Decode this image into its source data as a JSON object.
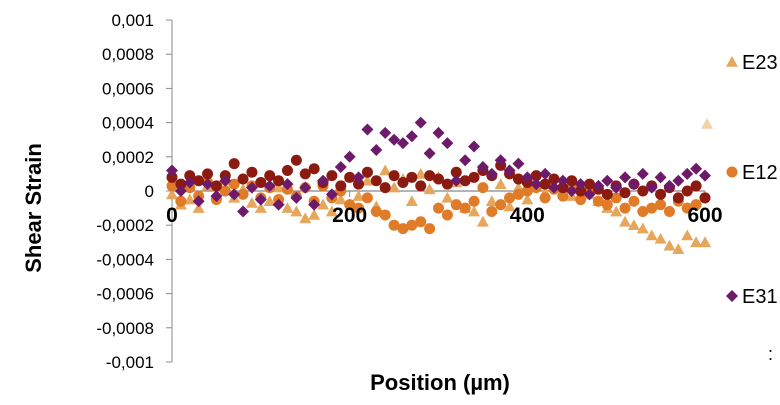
{
  "chart_data": {
    "type": "scatter",
    "xlabel": "Position (µm)",
    "ylabel": "Shear Strain",
    "xlim": [
      0,
      600
    ],
    "ylim": [
      -0.001,
      0.001
    ],
    "x_ticks": [
      "0",
      "200",
      "400",
      "600"
    ],
    "y_ticks": [
      "0,001",
      "0,0008",
      "0,0006",
      "0,0004",
      "0,0002",
      "0",
      "-0,0002",
      "-0,0004",
      "-0,0006",
      "-0,0008",
      "-0,001"
    ],
    "legend_position": "right",
    "series": [
      {
        "name": "E23",
        "marker": "triangle",
        "color": "#E6A65C",
        "points": [
          [
            0,
            -2e-05
          ],
          [
            10,
            -8e-05
          ],
          [
            20,
            -5e-05
          ],
          [
            30,
            -0.0001
          ],
          [
            40,
            3e-05
          ],
          [
            50,
            -2e-05
          ],
          [
            60,
            6e-05
          ],
          [
            70,
            -4e-05
          ],
          [
            80,
            1e-05
          ],
          [
            90,
            -7e-05
          ],
          [
            100,
            -0.0001
          ],
          [
            110,
            -6e-05
          ],
          [
            120,
            2e-05
          ],
          [
            130,
            -0.0001
          ],
          [
            140,
            -0.00012
          ],
          [
            150,
            -0.00016
          ],
          [
            160,
            -0.00014
          ],
          [
            170,
            -8e-05
          ],
          [
            180,
            -0.00012
          ],
          [
            190,
            -5e-05
          ],
          [
            200,
            8e-05
          ],
          [
            210,
            -3e-05
          ],
          [
            220,
            6e-05
          ],
          [
            230,
            -9e-05
          ],
          [
            240,
            0.00012
          ],
          [
            250,
            2e-05
          ],
          [
            260,
            7e-05
          ],
          [
            270,
            -6e-05
          ],
          [
            280,
            0.0001
          ],
          [
            290,
            1e-05
          ],
          [
            300,
            8e-05
          ],
          [
            310,
            -4e-05
          ],
          [
            320,
            5e-05
          ],
          [
            330,
            -0.0001
          ],
          [
            340,
            -0.00012
          ],
          [
            350,
            -0.00018
          ],
          [
            360,
            -6e-05
          ],
          [
            370,
            4e-05
          ],
          [
            380,
            -9e-05
          ],
          [
            390,
            2e-05
          ],
          [
            400,
            -5e-05
          ],
          [
            410,
            3e-05
          ],
          [
            420,
            -1e-05
          ],
          [
            430,
            4e-05
          ],
          [
            440,
            0.0
          ],
          [
            450,
            -3e-05
          ],
          [
            460,
            2e-05
          ],
          [
            470,
            -2e-05
          ],
          [
            480,
            -6e-05
          ],
          [
            490,
            -0.0001
          ],
          [
            500,
            -0.00012
          ],
          [
            510,
            -0.00018
          ],
          [
            520,
            -0.0002
          ],
          [
            530,
            -0.00022
          ],
          [
            540,
            -0.00026
          ],
          [
            550,
            -0.00028
          ],
          [
            560,
            -0.00032
          ],
          [
            570,
            -0.00034
          ],
          [
            580,
            -0.00026
          ],
          [
            590,
            -0.0003
          ],
          [
            600,
            -0.0003
          ]
        ]
      },
      {
        "name": "E12",
        "marker": "circle",
        "color": "#E07B28",
        "points": [
          [
            0,
            3e-05
          ],
          [
            10,
            -6e-05
          ],
          [
            20,
            2e-05
          ],
          [
            30,
            -3e-05
          ],
          [
            40,
            5e-05
          ],
          [
            50,
            -5e-05
          ],
          [
            60,
            0.0
          ],
          [
            70,
            4e-05
          ],
          [
            80,
            -2e-05
          ],
          [
            90,
            3e-05
          ],
          [
            100,
            -4e-05
          ],
          [
            110,
            2e-05
          ],
          [
            120,
            -5e-05
          ],
          [
            130,
            1e-05
          ],
          [
            140,
            -3e-05
          ],
          [
            150,
            2e-05
          ],
          [
            160,
            -6e-05
          ],
          [
            170,
            3e-05
          ],
          [
            180,
            -4e-05
          ],
          [
            190,
            0.0
          ],
          [
            200,
            -8e-05
          ],
          [
            210,
            -0.0001
          ],
          [
            220,
            -4e-05
          ],
          [
            230,
            -0.00012
          ],
          [
            240,
            -0.00014
          ],
          [
            250,
            -0.0002
          ],
          [
            260,
            -0.00022
          ],
          [
            270,
            -0.0002
          ],
          [
            280,
            -0.00018
          ],
          [
            290,
            -0.00022
          ],
          [
            300,
            -0.0001
          ],
          [
            310,
            -0.00014
          ],
          [
            320,
            -8e-05
          ],
          [
            330,
            -0.0001
          ],
          [
            340,
            -6e-05
          ],
          [
            350,
            2e-05
          ],
          [
            360,
            -0.00012
          ],
          [
            370,
            -8e-05
          ],
          [
            380,
            -4e-05
          ],
          [
            390,
            -2e-05
          ],
          [
            400,
            0.0
          ],
          [
            410,
            2e-05
          ],
          [
            420,
            -4e-05
          ],
          [
            430,
            1e-05
          ],
          [
            440,
            -3e-05
          ],
          [
            450,
            2e-05
          ],
          [
            460,
            -5e-05
          ],
          [
            470,
            0.0
          ],
          [
            480,
            -6e-05
          ],
          [
            490,
            -8e-05
          ],
          [
            500,
            -4e-05
          ],
          [
            510,
            -0.0001
          ],
          [
            520,
            -6e-05
          ],
          [
            530,
            -0.00012
          ],
          [
            540,
            -0.0001
          ],
          [
            550,
            -8e-05
          ],
          [
            560,
            -0.00012
          ],
          [
            570,
            -6e-05
          ],
          [
            580,
            -0.0001
          ],
          [
            590,
            -8e-05
          ],
          [
            600,
            -4e-05
          ]
        ]
      },
      {
        "name": "",
        "marker": "circle",
        "color": "#8B1A10",
        "points": [
          [
            0,
            8e-05
          ],
          [
            10,
            4e-05
          ],
          [
            20,
            9e-05
          ],
          [
            30,
            6e-05
          ],
          [
            40,
            0.0001
          ],
          [
            50,
            3e-05
          ],
          [
            60,
            9e-05
          ],
          [
            70,
            0.00016
          ],
          [
            80,
            7e-05
          ],
          [
            90,
            0.00011
          ],
          [
            100,
            5e-05
          ],
          [
            110,
            9e-05
          ],
          [
            120,
            6e-05
          ],
          [
            130,
            0.00012
          ],
          [
            140,
            0.00018
          ],
          [
            150,
            0.0001
          ],
          [
            160,
            0.00013
          ],
          [
            170,
            5e-05
          ],
          [
            180,
            9e-05
          ],
          [
            190,
            3e-05
          ],
          [
            200,
            8e-05
          ],
          [
            210,
            4e-05
          ],
          [
            220,
            0.00011
          ],
          [
            230,
            6e-05
          ],
          [
            240,
            2e-05
          ],
          [
            250,
            9e-05
          ],
          [
            260,
            5e-05
          ],
          [
            270,
            8e-05
          ],
          [
            280,
            3e-05
          ],
          [
            290,
            9e-05
          ],
          [
            300,
            7e-05
          ],
          [
            310,
            4e-05
          ],
          [
            320,
            0.00011
          ],
          [
            330,
            6e-05
          ],
          [
            340,
            8e-05
          ],
          [
            350,
            0.00012
          ],
          [
            360,
            9e-05
          ],
          [
            370,
            0.00015
          ],
          [
            380,
            0.0001
          ],
          [
            390,
            7e-05
          ],
          [
            400,
            5e-05
          ],
          [
            410,
            9e-05
          ],
          [
            420,
            4e-05
          ],
          [
            430,
            7e-05
          ],
          [
            440,
            2e-05
          ],
          [
            450,
            6e-05
          ],
          [
            460,
            0.0
          ],
          [
            470,
            4e-05
          ],
          [
            480,
            1e-05
          ],
          [
            490,
            -2e-05
          ],
          [
            500,
            3e-05
          ],
          [
            510,
            -1e-05
          ],
          [
            520,
            4e-05
          ],
          [
            530,
            0.0
          ],
          [
            540,
            3e-05
          ],
          [
            550,
            -2e-05
          ],
          [
            560,
            2e-05
          ],
          [
            570,
            -4e-05
          ],
          [
            580,
            0.0
          ],
          [
            590,
            3e-05
          ],
          [
            600,
            -4e-05
          ]
        ]
      },
      {
        "name": "E31",
        "marker": "diamond",
        "color": "#6E1A6B",
        "points": [
          [
            0,
            0.00012
          ],
          [
            10,
            0.0
          ],
          [
            20,
            5e-05
          ],
          [
            30,
            -6e-05
          ],
          [
            40,
            4e-05
          ],
          [
            50,
            -3e-05
          ],
          [
            60,
            6e-05
          ],
          [
            70,
            -2e-05
          ],
          [
            80,
            -0.00012
          ],
          [
            90,
            2e-05
          ],
          [
            100,
            -5e-05
          ],
          [
            110,
            3e-05
          ],
          [
            120,
            -8e-05
          ],
          [
            130,
            4e-05
          ],
          [
            140,
            -4e-05
          ],
          [
            150,
            2e-05
          ],
          [
            160,
            -8e-05
          ],
          [
            170,
            6e-05
          ],
          [
            180,
            -2e-05
          ],
          [
            190,
            0.00014
          ],
          [
            200,
            0.0002
          ],
          [
            210,
            8e-05
          ],
          [
            220,
            0.00036
          ],
          [
            230,
            0.00024
          ],
          [
            240,
            0.00034
          ],
          [
            250,
            0.0003
          ],
          [
            260,
            0.00028
          ],
          [
            270,
            0.00032
          ],
          [
            280,
            0.0004
          ],
          [
            290,
            0.00022
          ],
          [
            300,
            0.00034
          ],
          [
            310,
            0.00028
          ],
          [
            320,
            6e-05
          ],
          [
            330,
            0.00018
          ],
          [
            340,
            0.00026
          ],
          [
            350,
            0.00014
          ],
          [
            360,
            0.0001
          ],
          [
            370,
            0.00018
          ],
          [
            380,
            0.00012
          ],
          [
            390,
            0.00016
          ],
          [
            400,
            8e-05
          ],
          [
            410,
            4e-05
          ],
          [
            420,
            0.0001
          ],
          [
            430,
            2e-05
          ],
          [
            440,
            6e-05
          ],
          [
            450,
            0.0
          ],
          [
            460,
            4e-05
          ],
          [
            470,
            -2e-05
          ],
          [
            480,
            3e-05
          ],
          [
            490,
            6e-05
          ],
          [
            500,
            2e-05
          ],
          [
            510,
            8e-05
          ],
          [
            520,
            4e-05
          ],
          [
            530,
            0.0001
          ],
          [
            540,
            2e-05
          ],
          [
            550,
            8e-05
          ],
          [
            560,
            3e-05
          ],
          [
            570,
            6e-05
          ],
          [
            580,
            0.0001
          ],
          [
            590,
            0.00013
          ],
          [
            600,
            9e-05
          ]
        ]
      }
    ]
  },
  "stray_text": ":"
}
